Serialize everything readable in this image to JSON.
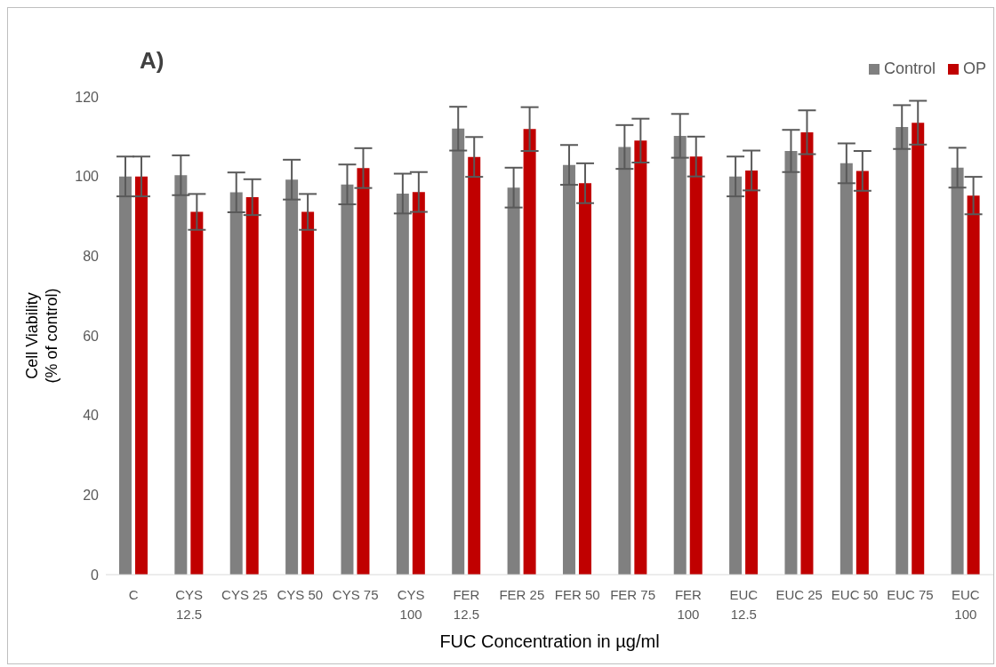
{
  "chart_data": {
    "type": "bar",
    "title": "A)",
    "xlabel": "FUC Concentration in µg/ml",
    "ylabel": "Cell Viability\n(% of control)",
    "categories": [
      "C",
      "CYS 12.5",
      "CYS 25",
      "CYS 50",
      "CYS 75",
      "CYS 100",
      "FER 12.5",
      "FER 25",
      "FER 50",
      "FER 75",
      "FER 100",
      "EUC 12.5",
      "EUC 25",
      "EUC 50",
      "EUC 75",
      "EUC 100"
    ],
    "series": [
      {
        "name": "Control",
        "color": "#808080",
        "values": [
          100,
          100.3,
          96,
          99.2,
          98,
          95.7,
          112,
          97.2,
          102.9,
          107.4,
          110.2,
          100,
          106.4,
          103.3,
          112.4,
          102.2
        ],
        "errors": [
          5,
          5,
          5,
          5,
          5,
          5,
          5.5,
          5,
          5,
          5.5,
          5.5,
          5,
          5.3,
          5,
          5.5,
          5
        ]
      },
      {
        "name": "OP",
        "color": "#c00000",
        "values": [
          100,
          91.1,
          94.8,
          91.1,
          102.1,
          96.1,
          104.9,
          111.9,
          98.3,
          109,
          105,
          101.5,
          111.1,
          101.4,
          113.5,
          95.2
        ],
        "errors": [
          5,
          4.5,
          4.5,
          4.5,
          5,
          5,
          5,
          5.5,
          5,
          5.5,
          5,
          5,
          5.5,
          5,
          5.5,
          4.7
        ]
      }
    ],
    "ylim": [
      0,
      120
    ],
    "yticks": [
      0,
      20,
      40,
      60,
      80,
      100,
      120
    ],
    "grid": false,
    "legend": "top right"
  }
}
